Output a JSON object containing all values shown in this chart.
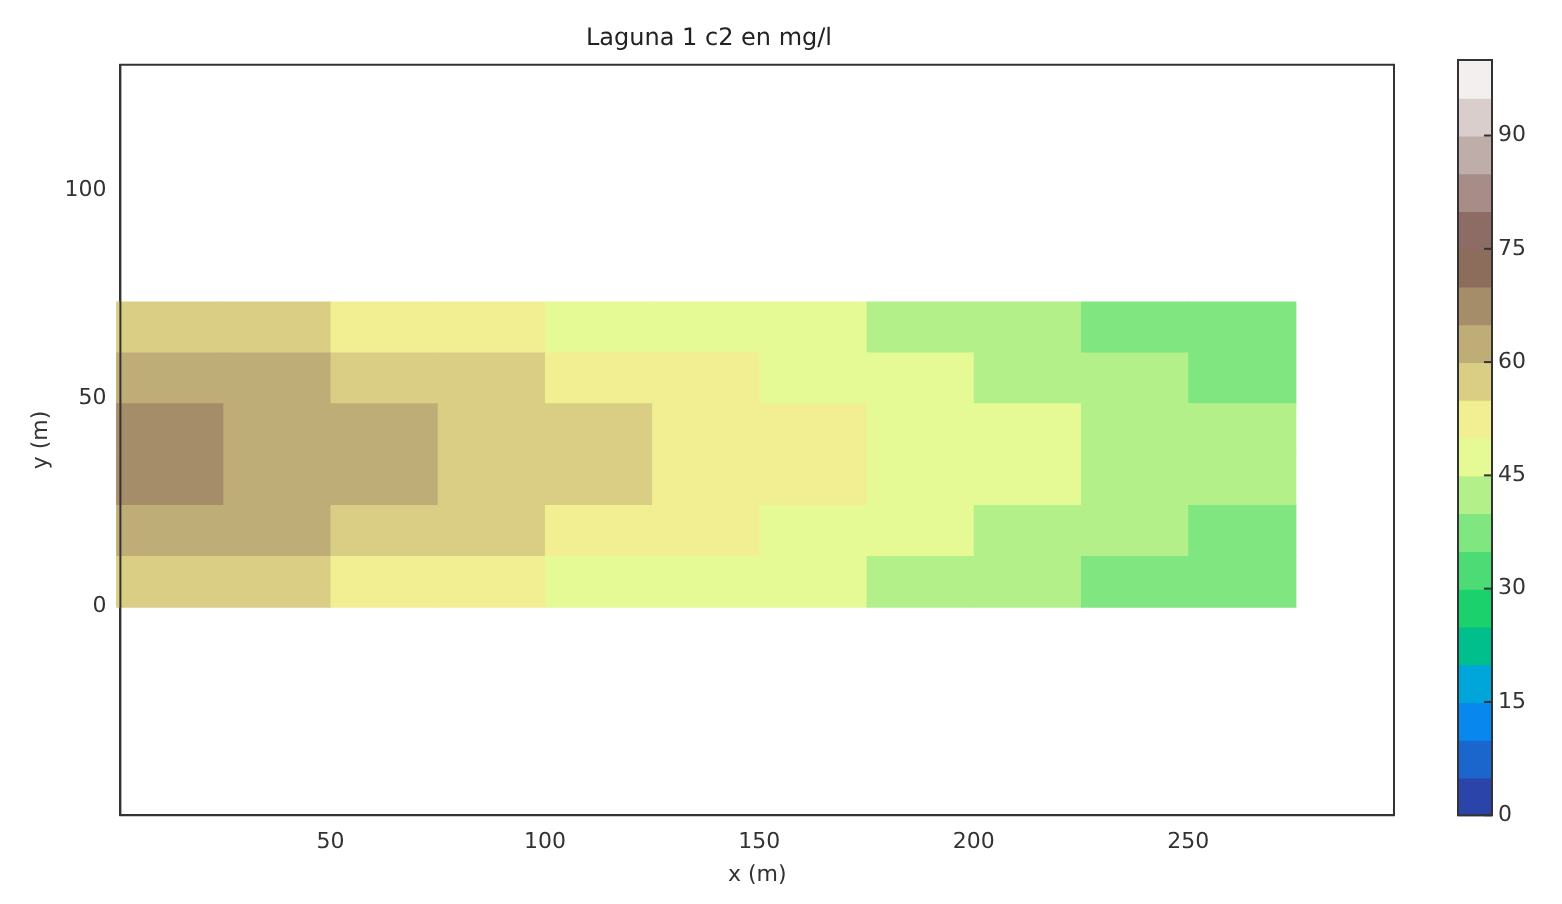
{
  "chart_data": {
    "type": "heatmap",
    "title": "Laguna 1 c2 en mg/l",
    "xlabel": "x (m)",
    "ylabel": "y (m)",
    "x": [
      12.5,
      37.5,
      62.5,
      87.5,
      112.5,
      137.5,
      162.5,
      187.5,
      212.5,
      237.5,
      262.5
    ],
    "y": [
      67.1,
      54.9,
      42.7,
      30.5,
      18.3,
      6.1
    ],
    "cells": [
      [
        57,
        55,
        53,
        51,
        49,
        47,
        45,
        43,
        41,
        38,
        36
      ],
      [
        62,
        60,
        57,
        55,
        53,
        50,
        48,
        46,
        44,
        41,
        39
      ],
      [
        65,
        62,
        60,
        57,
        55,
        52,
        50,
        47,
        45,
        42,
        40
      ],
      [
        65,
        62,
        60,
        57,
        55,
        52,
        50,
        47,
        45,
        42,
        40
      ],
      [
        62,
        60,
        57,
        55,
        53,
        50,
        48,
        46,
        44,
        41,
        39
      ],
      [
        57,
        55,
        53,
        51,
        49,
        47,
        45,
        43,
        41,
        38,
        36
      ]
    ],
    "xlim": [
      1,
      298
    ],
    "xticks": [
      50,
      100,
      150,
      200,
      250
    ],
    "ylim": [
      -50,
      130
    ],
    "yticks": [
      0,
      50,
      100
    ],
    "clim": [
      0,
      100
    ],
    "cticks": [
      0,
      15,
      30,
      45,
      60,
      75,
      90
    ]
  }
}
